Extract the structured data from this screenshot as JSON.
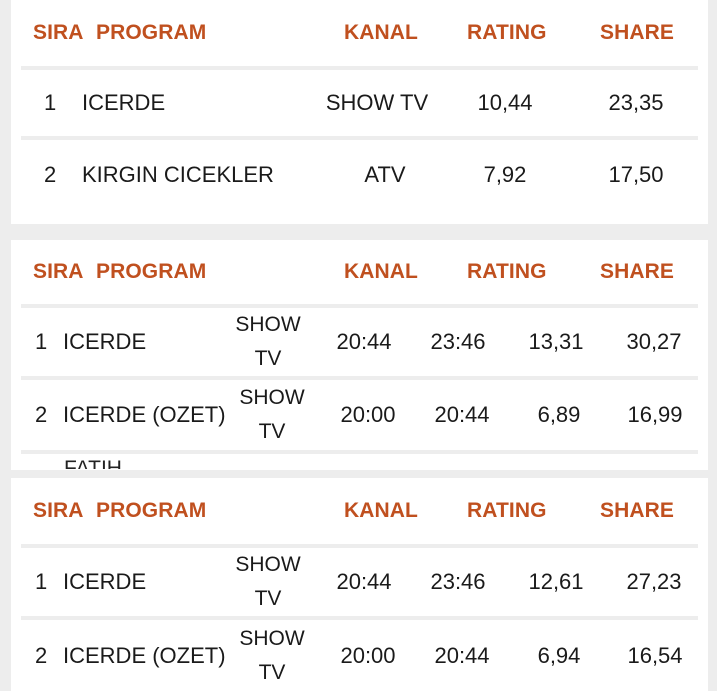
{
  "headers": {
    "sira": "SIRA",
    "program": "PROGRAM",
    "kanal": "KANAL",
    "rating": "RATING",
    "share": "SHARE"
  },
  "table1": {
    "rows": [
      {
        "rank": "1",
        "program": "ICERDE",
        "channel": "SHOW TV",
        "rating": "10,44",
        "share": "23,35"
      },
      {
        "rank": "2",
        "program": "KIRGIN CICEKLER",
        "channel": "ATV",
        "rating": "7,92",
        "share": "17,50"
      }
    ]
  },
  "table2": {
    "rows": [
      {
        "rank": "1",
        "program": "ICERDE",
        "channel_l1": "SHOW",
        "channel_l2": "TV",
        "start": "20:44",
        "end": "23:46",
        "rating": "13,31",
        "share": "30,27"
      },
      {
        "rank": "2",
        "program": "ICERDE (OZET)",
        "channel_l1": "SHOW",
        "channel_l2": "TV",
        "start": "20:00",
        "end": "20:44",
        "rating": "6,89",
        "share": "16,99"
      }
    ],
    "partial_next": "FATIH"
  },
  "table3": {
    "rows": [
      {
        "rank": "1",
        "program": "ICERDE",
        "channel_l1": "SHOW",
        "channel_l2": "TV",
        "start": "20:44",
        "end": "23:46",
        "rating": "12,61",
        "share": "27,23"
      },
      {
        "rank": "2",
        "program": "ICERDE (OZET)",
        "channel_l1": "SHOW",
        "channel_l2": "TV",
        "start": "20:00",
        "end": "20:44",
        "rating": "6,94",
        "share": "16,54"
      }
    ]
  }
}
